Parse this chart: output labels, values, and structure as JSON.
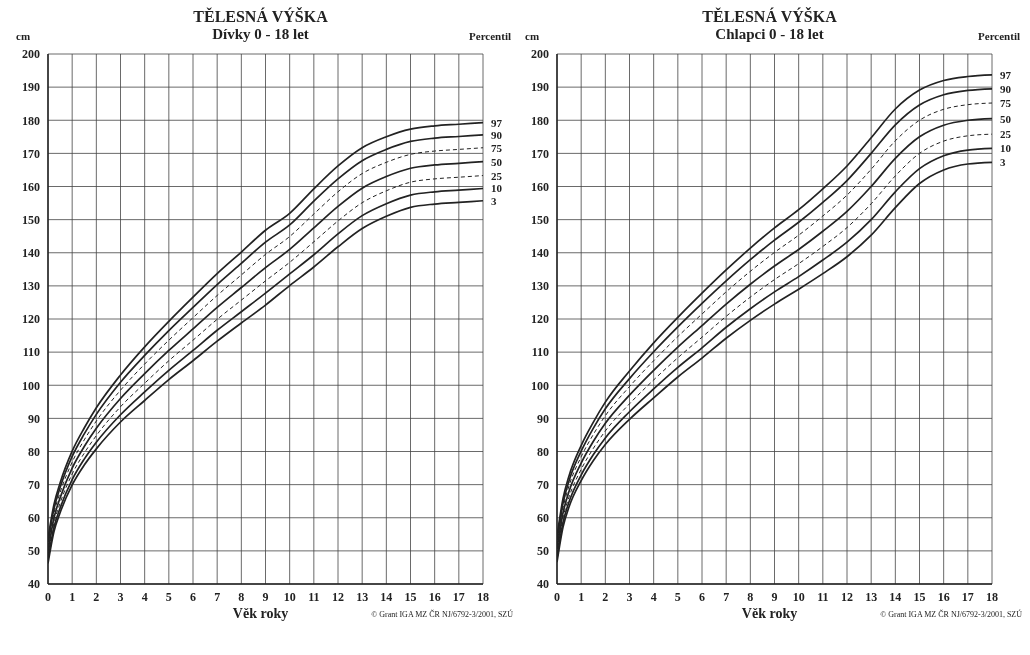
{
  "chart_data": [
    {
      "type": "line",
      "title": "TĚLESNÁ VÝŠKA",
      "subtitle": "Dívky 0 - 18 let",
      "xlabel": "Věk roky",
      "ylabel": "cm",
      "legend_title": "Percentil",
      "annotations": [
        "© Grant IGA MZ ČR NJ/6792-3/2001, SZÚ"
      ],
      "x": [
        0,
        0.25,
        0.5,
        1,
        1.5,
        2,
        3,
        4,
        5,
        6,
        7,
        8,
        9,
        10,
        11,
        12,
        13,
        14,
        15,
        16,
        17,
        18
      ],
      "xlim": [
        0,
        18
      ],
      "xticks": [
        0,
        1,
        2,
        3,
        4,
        5,
        6,
        7,
        8,
        9,
        10,
        11,
        12,
        13,
        14,
        15,
        16,
        17,
        18
      ],
      "ylim": [
        40,
        200
      ],
      "yticks": [
        40,
        50,
        60,
        70,
        80,
        90,
        100,
        110,
        120,
        130,
        140,
        150,
        160,
        170,
        180,
        190,
        200
      ],
      "grid": true,
      "series": [
        {
          "name": "97",
          "color": "#222222",
          "line_style": "solid",
          "values": [
            53.8,
            64.1,
            70.5,
            80.1,
            87.1,
            93.2,
            103.1,
            111.6,
            119.3,
            126.6,
            133.7,
            140.2,
            146.8,
            151.9,
            159.3,
            166.2,
            171.7,
            175.0,
            177.3,
            178.3,
            178.8,
            179.3
          ]
        },
        {
          "name": "90",
          "color": "#222222",
          "line_style": "solid",
          "values": [
            52.6,
            62.8,
            69.1,
            78.5,
            85.3,
            91.2,
            100.9,
            109.0,
            116.5,
            123.5,
            130.4,
            136.8,
            143.2,
            148.4,
            155.6,
            162.3,
            167.8,
            171.2,
            173.6,
            174.6,
            175.1,
            175.6
          ]
        },
        {
          "name": "75",
          "color": "#222222",
          "line_style": "dashed",
          "values": [
            51.3,
            61.5,
            67.6,
            76.8,
            83.5,
            89.2,
            98.5,
            106.4,
            113.6,
            120.4,
            127.1,
            133.3,
            139.5,
            144.9,
            151.7,
            158.4,
            163.9,
            167.3,
            169.7,
            170.7,
            171.2,
            171.7
          ]
        },
        {
          "name": "50",
          "color": "#222222",
          "line_style": "solid",
          "values": [
            50,
            60,
            66,
            75,
            81.5,
            87,
            96,
            103.5,
            110.5,
            117,
            123.5,
            129.5,
            135.5,
            141,
            147.5,
            154,
            159.5,
            163,
            165.5,
            166.5,
            167,
            167.5
          ]
        },
        {
          "name": "25",
          "color": "#222222",
          "line_style": "dashed",
          "values": [
            48.7,
            58.5,
            64.4,
            73.2,
            79.5,
            84.8,
            93.5,
            100.6,
            107.4,
            113.6,
            119.9,
            125.7,
            131.5,
            137.1,
            143.3,
            149.6,
            155.1,
            158.7,
            161.3,
            162.3,
            162.8,
            163.3
          ]
        },
        {
          "name": "10",
          "color": "#222222",
          "line_style": "solid",
          "values": [
            47.4,
            57.2,
            62.9,
            71.5,
            77.7,
            82.8,
            91.1,
            98.0,
            104.5,
            110.5,
            116.6,
            122.2,
            127.8,
            133.6,
            139.4,
            145.7,
            151.2,
            154.8,
            157.4,
            158.4,
            158.9,
            159.4
          ]
        },
        {
          "name": "3",
          "color": "#222222",
          "line_style": "solid",
          "values": [
            46.2,
            55.9,
            61.5,
            69.9,
            75.9,
            80.8,
            88.9,
            95.4,
            101.7,
            107.4,
            113.3,
            118.8,
            124.2,
            130.1,
            135.7,
            141.8,
            147.3,
            151.0,
            153.7,
            154.7,
            155.2,
            155.7
          ]
        }
      ]
    },
    {
      "type": "line",
      "title": "TĚLESNÁ VÝŠKA",
      "subtitle": "Chlapci 0 - 18 let",
      "xlabel": "Věk roky",
      "ylabel": "cm",
      "legend_title": "Percentil",
      "annotations": [
        "© Grant IGA MZ ČR NJ/6792-3/2001, SZÚ"
      ],
      "x": [
        0,
        0.25,
        0.5,
        1,
        1.5,
        2,
        3,
        4,
        5,
        6,
        7,
        8,
        9,
        10,
        11,
        12,
        13,
        14,
        15,
        16,
        17,
        18
      ],
      "xlim": [
        0,
        18
      ],
      "xticks": [
        0,
        1,
        2,
        3,
        4,
        5,
        6,
        7,
        8,
        9,
        10,
        11,
        12,
        13,
        14,
        15,
        16,
        17,
        18
      ],
      "ylim": [
        40,
        200
      ],
      "yticks": [
        40,
        50,
        60,
        70,
        80,
        90,
        100,
        110,
        120,
        130,
        140,
        150,
        160,
        170,
        180,
        190,
        200
      ],
      "grid": true,
      "series": [
        {
          "name": "97",
          "color": "#222222",
          "line_style": "solid",
          "values": [
            54.4,
            65.8,
            72.7,
            81.8,
            88.8,
            94.9,
            104.3,
            112.8,
            120.5,
            127.8,
            134.8,
            141.4,
            147.5,
            153.0,
            159.3,
            166.2,
            174.7,
            183.4,
            189.1,
            192.0,
            193.2,
            193.7
          ]
        },
        {
          "name": "90",
          "color": "#222222",
          "line_style": "solid",
          "values": [
            53.2,
            64.4,
            71.2,
            80.1,
            87.0,
            92.9,
            102.0,
            110.1,
            117.6,
            124.7,
            131.5,
            137.9,
            143.8,
            149.2,
            155.2,
            161.8,
            170.0,
            178.6,
            184.6,
            187.7,
            189.0,
            189.5
          ]
        },
        {
          "name": "75",
          "color": "#222222",
          "line_style": "dashed",
          "values": [
            51.9,
            63.0,
            69.7,
            78.4,
            85.1,
            90.8,
            99.6,
            107.4,
            114.7,
            121.5,
            128.2,
            134.4,
            140.1,
            145.3,
            151.1,
            157.4,
            165.2,
            173.8,
            180.0,
            183.3,
            184.7,
            185.2
          ]
        },
        {
          "name": "50",
          "color": "#222222",
          "line_style": "solid",
          "values": [
            50.5,
            61.5,
            68,
            76.5,
            83,
            88.5,
            97,
            104.5,
            111.5,
            118,
            124.5,
            130.5,
            136,
            141,
            146.5,
            152.5,
            160,
            168.5,
            175,
            178.5,
            180,
            180.5
          ]
        },
        {
          "name": "25",
          "color": "#222222",
          "line_style": "dashed",
          "values": [
            49.1,
            60.0,
            66.3,
            74.6,
            80.9,
            86.2,
            94.4,
            101.6,
            108.3,
            114.5,
            120.8,
            126.6,
            131.9,
            136.7,
            141.9,
            147.6,
            154.8,
            163.2,
            170.0,
            173.7,
            175.3,
            175.8
          ]
        },
        {
          "name": "10",
          "color": "#222222",
          "line_style": "solid",
          "values": [
            47.8,
            58.6,
            64.8,
            72.9,
            79.0,
            84.1,
            92.0,
            98.9,
            105.4,
            111.3,
            117.5,
            123.1,
            128.2,
            132.8,
            137.8,
            143.2,
            150.0,
            158.4,
            165.4,
            169.3,
            171.0,
            171.5
          ]
        },
        {
          "name": "3",
          "color": "#222222",
          "line_style": "solid",
          "values": [
            46.6,
            57.2,
            63.3,
            71.2,
            77.2,
            82.1,
            89.7,
            96.2,
            102.5,
            108.2,
            114.2,
            119.6,
            124.5,
            129.0,
            133.7,
            138.8,
            145.3,
            153.6,
            160.9,
            165.0,
            166.8,
            167.3
          ]
        }
      ]
    }
  ]
}
